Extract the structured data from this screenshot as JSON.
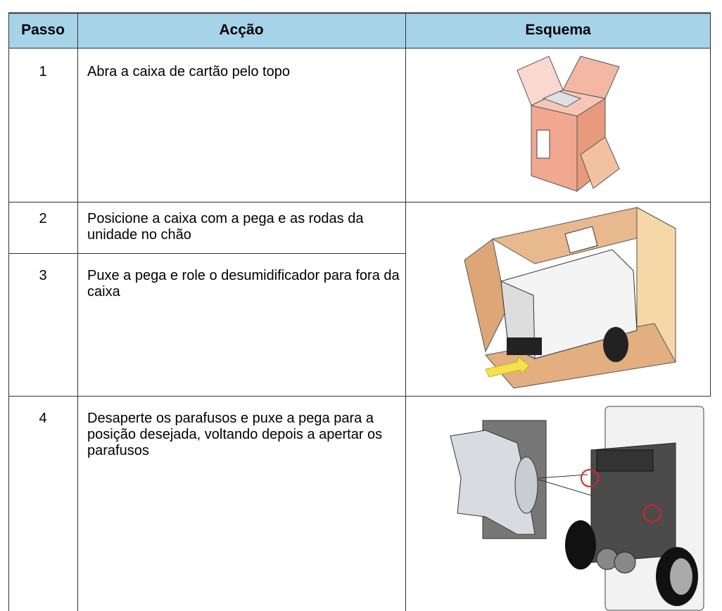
{
  "table": {
    "header": [
      "Passo",
      "Acção",
      "Esquema"
    ],
    "rows": [
      [
        "1",
        "Abra a caixa de cartão pelo topo"
      ],
      [
        "2",
        "Posicione a caixa com a pega e as rodas da unidade no chão"
      ],
      [
        "3",
        "Puxe a pega e role o desumidificador para fora da caixa"
      ],
      [
        "4",
        "Desaperte os parafusos e puxe a pega para a posição desejada, voltando depois a apertar os parafusos"
      ]
    ]
  }
}
